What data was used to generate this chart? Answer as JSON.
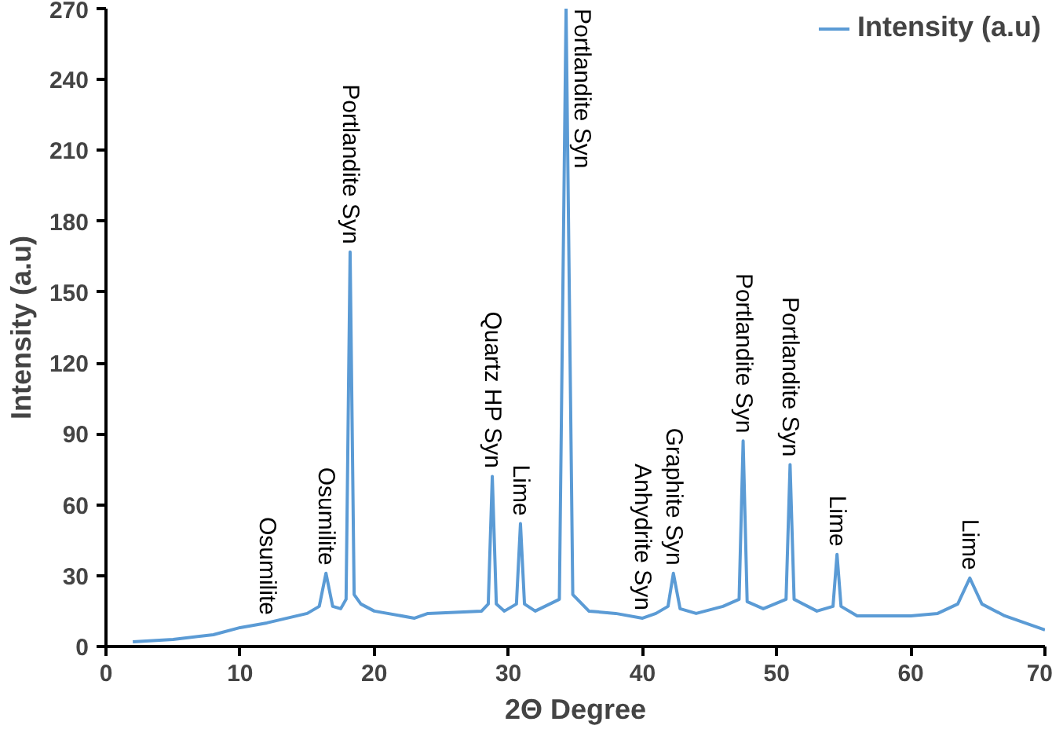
{
  "chart_data": {
    "type": "line",
    "xlabel": "2Θ Degree",
    "ylabel": "Intensity (a.u)",
    "x": [
      2,
      5,
      8,
      10,
      12,
      15,
      15.9,
      16.4,
      16.9,
      17.5,
      17.9,
      18.2,
      18.5,
      19,
      20,
      23,
      24,
      28,
      28.5,
      28.8,
      29.1,
      29.7,
      30.6,
      30.9,
      31.2,
      32,
      33.8,
      34.3,
      34.8,
      36,
      38,
      40,
      41,
      41.9,
      42.3,
      42.8,
      44,
      46,
      47.2,
      47.5,
      47.8,
      49,
      50.7,
      51,
      51.3,
      53,
      54.2,
      54.5,
      54.8,
      56,
      60,
      62,
      63.5,
      64.4,
      65.3,
      67,
      69,
      70
    ],
    "series": [
      {
        "name": "Intensity (a.u)",
        "color": "#5b9bd5",
        "values": [
          2,
          3,
          5,
          8,
          10,
          14,
          17,
          31,
          17,
          16,
          20,
          167,
          22,
          18,
          15,
          12,
          14,
          15,
          18,
          72,
          18,
          15,
          18,
          52,
          18,
          15,
          20,
          270,
          22,
          15,
          14,
          12,
          14,
          17,
          31,
          16,
          14,
          17,
          20,
          87,
          19,
          16,
          20,
          77,
          20,
          15,
          17,
          39,
          17,
          13,
          13,
          14,
          18,
          29,
          18,
          13,
          9,
          7
        ]
      }
    ],
    "xlim": [
      0,
      70
    ],
    "xticks": [
      0,
      10,
      20,
      30,
      40,
      50,
      60,
      70
    ],
    "ylim": [
      0,
      270
    ],
    "yticks": [
      0,
      30,
      60,
      90,
      120,
      150,
      180,
      210,
      240,
      270
    ],
    "grid": false,
    "legend": "top right",
    "marker": "none",
    "line_style": "solid",
    "annotations": [
      {
        "text": "Osumilite",
        "x": 12,
        "y": 10
      },
      {
        "text": "Osumilite",
        "x": 16.4,
        "y": 31
      },
      {
        "text": "Portlandite Syn",
        "x": 18.2,
        "y": 167
      },
      {
        "text": "Quartz HP Syn",
        "x": 28.8,
        "y": 72
      },
      {
        "text": "Lime",
        "x": 30.9,
        "y": 52
      },
      {
        "text": "Portlandite Syn",
        "x": 34.3,
        "y": 270
      },
      {
        "text": "Anhydrite Syn",
        "x": 40,
        "y": 12
      },
      {
        "text": "Graphite Syn",
        "x": 42.3,
        "y": 31
      },
      {
        "text": "Portlandite Syn",
        "x": 47.5,
        "y": 87
      },
      {
        "text": "Portlandite Syn",
        "x": 51,
        "y": 77
      },
      {
        "text": "Lime",
        "x": 54.5,
        "y": 39
      },
      {
        "text": "Lime",
        "x": 64.4,
        "y": 29
      }
    ]
  }
}
